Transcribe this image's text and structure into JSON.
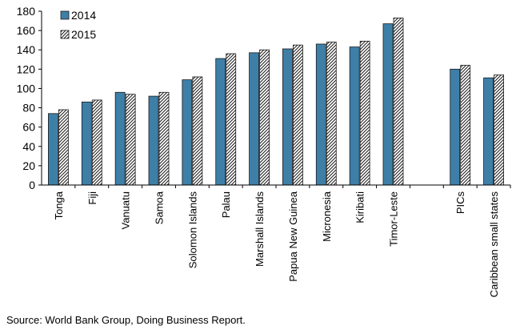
{
  "chart_data": {
    "type": "bar",
    "title": "",
    "xlabel": "",
    "ylabel": "",
    "ylim": [
      0,
      180
    ],
    "yticks": [
      0,
      20,
      40,
      60,
      80,
      100,
      120,
      140,
      160,
      180
    ],
    "grid": false,
    "legend_position": "top-left",
    "categories": [
      "Tonga",
      "Fiji",
      "Vanuatu",
      "Samoa",
      "Solomon Islands",
      "Palau",
      "Marshall Islands",
      "Papua New Guinea",
      "Micronesia",
      "Kiribati",
      "Timor-Leste",
      "",
      "PICs",
      "Caribbean small states"
    ],
    "series": [
      {
        "name": "2014",
        "color": "#3e7fa8",
        "pattern": "solid",
        "values": [
          74,
          86,
          96,
          92,
          109,
          131,
          137,
          141,
          146,
          143,
          167,
          null,
          120,
          111
        ]
      },
      {
        "name": "2015",
        "color": "#1a1a1a",
        "pattern": "diagonal-hatch",
        "values": [
          78,
          88,
          94,
          96,
          112,
          136,
          140,
          145,
          148,
          149,
          173,
          null,
          124,
          114
        ]
      }
    ]
  },
  "source": "Source: World Bank Group, Doing Business Report."
}
